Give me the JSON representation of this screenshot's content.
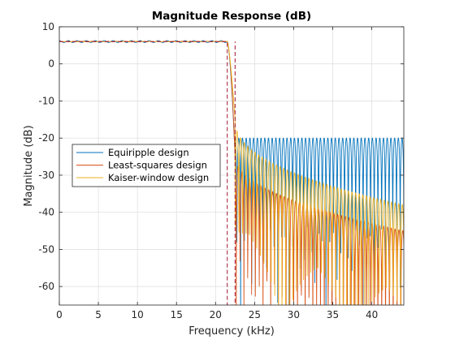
{
  "chart_data": {
    "type": "line",
    "title": "Magnitude Response (dB)",
    "xlabel": "Frequency (kHz)",
    "ylabel": "Magnitude (dB)",
    "xlim": [
      0,
      44.1
    ],
    "ylim": [
      -65,
      10
    ],
    "xticks": [
      0,
      5,
      10,
      15,
      20,
      25,
      30,
      35,
      40
    ],
    "yticks": [
      10,
      0,
      -10,
      -20,
      -30,
      -40,
      -50,
      -60
    ],
    "xtick_labels": [
      "0",
      "5",
      "10",
      "15",
      "20",
      "25",
      "30",
      "35",
      "40"
    ],
    "ytick_labels": [
      "10",
      "0",
      "-10",
      "-20",
      "-30",
      "-40",
      "-50",
      "-60"
    ],
    "grid": true,
    "legend_placement": "center-left",
    "series": [
      {
        "name": "Equiripple design",
        "color": "#0072BD",
        "passband_gain_db": 6.02,
        "passband_ripple_db": 0.5,
        "stopband_peak_db": -20,
        "transition_khz": [
          21.5,
          22.5
        ]
      },
      {
        "name": "Least-squares design",
        "color": "#D95319",
        "passband_gain_db": 6.02,
        "passband_ripple_db": 0.15,
        "stopband_peak_db_at_edge": -25,
        "stopband_peak_db_at_end": -45,
        "transition_khz": [
          21.5,
          22.5
        ]
      },
      {
        "name": "Kaiser-window design",
        "color": "#EDB120",
        "passband_gain_db": 6.02,
        "passband_ripple_db": 0.1,
        "stopband_peak_db_at_edge": -15,
        "stopband_peak_db_at_end": -38,
        "transition_khz": [
          21.5,
          22.5
        ]
      }
    ],
    "mask": {
      "color": "#A2142F",
      "style": "dashed",
      "x": [
        0,
        21.5,
        21.5,
        22.5,
        22.5
      ],
      "y": [
        6,
        6,
        -65,
        -65,
        6
      ]
    }
  }
}
